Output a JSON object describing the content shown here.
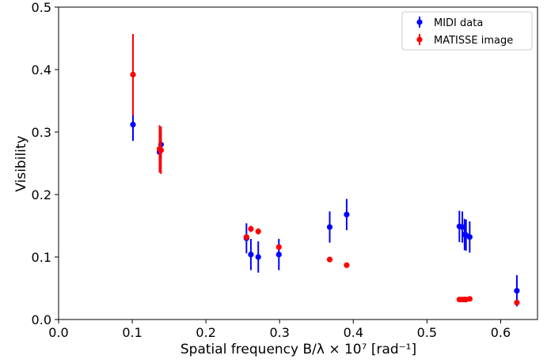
{
  "chart_data": {
    "type": "scatter",
    "title": "",
    "xlabel": "Spatial frequency B/λ × 10⁷ [rad⁻¹]",
    "ylabel": "Visibility",
    "xlim": [
      0.0,
      0.65
    ],
    "ylim": [
      0.0,
      0.5
    ],
    "xticks": [
      "0.0",
      "0.1",
      "0.2",
      "0.3",
      "0.4",
      "0.5",
      "0.6"
    ],
    "yticks": [
      "0.0",
      "0.1",
      "0.2",
      "0.3",
      "0.4",
      "0.5"
    ],
    "grid": false,
    "legend_position": "top-right",
    "series": [
      {
        "name": "MIDI data",
        "color": "#0000ff",
        "points": [
          {
            "x": 0.101,
            "y": 0.312,
            "err": 0.026
          },
          {
            "x": 0.137,
            "y": 0.268,
            "err": 0.022
          },
          {
            "x": 0.139,
            "y": 0.28,
            "err": 0.022
          },
          {
            "x": 0.255,
            "y": 0.13,
            "err": 0.024
          },
          {
            "x": 0.261,
            "y": 0.104,
            "err": 0.025
          },
          {
            "x": 0.271,
            "y": 0.1,
            "err": 0.025
          },
          {
            "x": 0.299,
            "y": 0.104,
            "err": 0.025
          },
          {
            "x": 0.368,
            "y": 0.148,
            "err": 0.025
          },
          {
            "x": 0.391,
            "y": 0.168,
            "err": 0.025
          },
          {
            "x": 0.544,
            "y": 0.149,
            "err": 0.025
          },
          {
            "x": 0.548,
            "y": 0.148,
            "err": 0.025
          },
          {
            "x": 0.551,
            "y": 0.136,
            "err": 0.025
          },
          {
            "x": 0.553,
            "y": 0.135,
            "err": 0.025
          },
          {
            "x": 0.558,
            "y": 0.132,
            "err": 0.025
          },
          {
            "x": 0.622,
            "y": 0.046,
            "err": 0.025
          }
        ]
      },
      {
        "name": "MATISSE image",
        "color": "#ff0000",
        "points": [
          {
            "x": 0.101,
            "y": 0.392,
            "err": 0.065
          },
          {
            "x": 0.137,
            "y": 0.273,
            "err": 0.038
          },
          {
            "x": 0.139,
            "y": 0.271,
            "err": 0.038
          },
          {
            "x": 0.255,
            "y": 0.132,
            "err": 0.005
          },
          {
            "x": 0.261,
            "y": 0.145,
            "err": 0.005
          },
          {
            "x": 0.271,
            "y": 0.141,
            "err": 0.005
          },
          {
            "x": 0.299,
            "y": 0.116,
            "err": 0.004
          },
          {
            "x": 0.368,
            "y": 0.096,
            "err": 0.002
          },
          {
            "x": 0.391,
            "y": 0.087,
            "err": 0.002
          },
          {
            "x": 0.544,
            "y": 0.032,
            "err": 0.001
          },
          {
            "x": 0.548,
            "y": 0.032,
            "err": 0.001
          },
          {
            "x": 0.551,
            "y": 0.032,
            "err": 0.001
          },
          {
            "x": 0.553,
            "y": 0.032,
            "err": 0.001
          },
          {
            "x": 0.558,
            "y": 0.033,
            "err": 0.001
          },
          {
            "x": 0.622,
            "y": 0.027,
            "err": 0.004
          }
        ]
      }
    ]
  }
}
